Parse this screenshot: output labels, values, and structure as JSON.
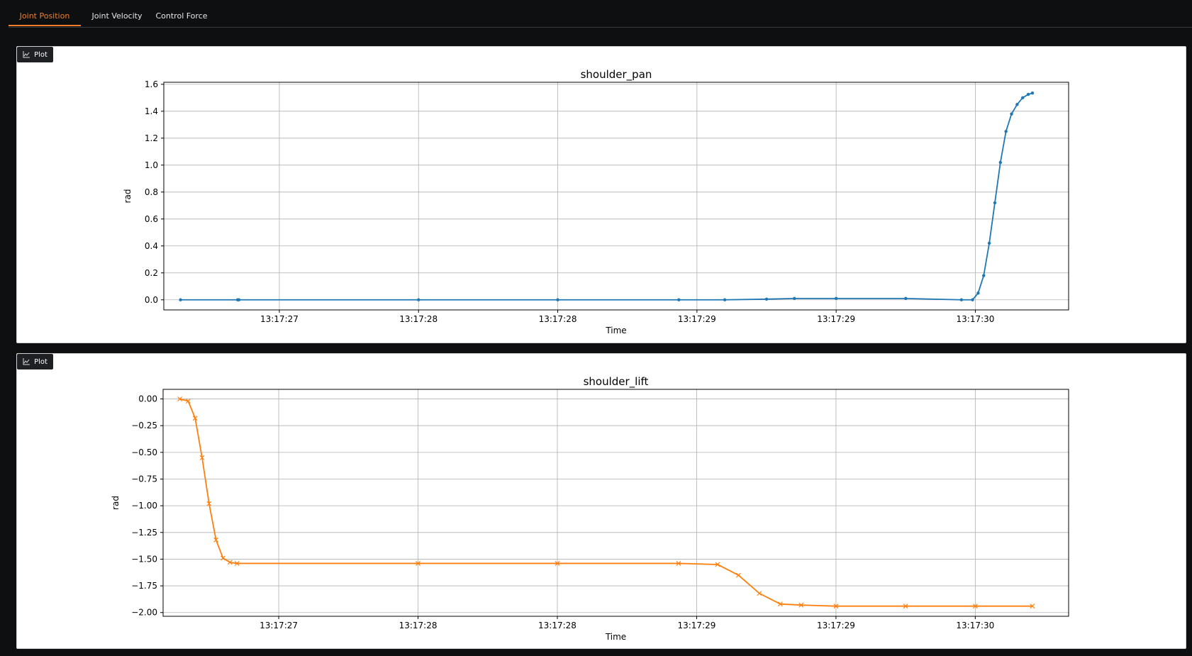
{
  "tabs": [
    {
      "label": "Joint Position",
      "active": true
    },
    {
      "label": "Joint Velocity",
      "active": false
    },
    {
      "label": "Control Force",
      "active": false
    }
  ],
  "panels": [
    {
      "button_label": "Plot",
      "button_icon": "chart-icon"
    },
    {
      "button_label": "Plot",
      "button_icon": "chart-icon"
    }
  ],
  "colors": {
    "accent": "#f27e2c",
    "series_blue": "#1f77b4",
    "series_orange": "#ff7f0e"
  },
  "chart_data": [
    {
      "type": "line",
      "title": "shoulder_pan",
      "xlabel": "Time",
      "ylabel": "rad",
      "marker": "dot",
      "color": "#1f77b4",
      "grid": true,
      "x_ticks": [
        "13:17:27",
        "13:17:28",
        "13:17:28",
        "13:17:29",
        "13:17:29",
        "13:17:30"
      ],
      "x_tick_values": [
        1.0,
        2.0,
        3.0,
        4.0,
        5.0,
        6.0
      ],
      "xlim": [
        0.17,
        6.67
      ],
      "y_ticks": [
        "0.0",
        "0.2",
        "0.4",
        "0.6",
        "0.8",
        "1.0",
        "1.2",
        "1.4",
        "1.6"
      ],
      "y_tick_values": [
        0.0,
        0.2,
        0.4,
        0.6,
        0.8,
        1.0,
        1.2,
        1.4,
        1.6
      ],
      "ylim": [
        -0.075,
        1.615
      ],
      "x": [
        0.29,
        0.7,
        0.71,
        2.0,
        3.0,
        3.87,
        4.2,
        4.5,
        4.7,
        5.0,
        5.5,
        5.9,
        5.98,
        6.02,
        6.06,
        6.1,
        6.14,
        6.18,
        6.22,
        6.26,
        6.3,
        6.34,
        6.38,
        6.41
      ],
      "y": [
        0.0,
        0.0,
        0.0,
        0.0,
        0.0,
        0.0,
        0.0,
        0.005,
        0.01,
        0.01,
        0.01,
        0.0,
        0.0,
        0.05,
        0.18,
        0.42,
        0.72,
        1.02,
        1.25,
        1.38,
        1.45,
        1.5,
        1.525,
        1.535
      ]
    },
    {
      "type": "line",
      "title": "shoulder_lift",
      "xlabel": "Time",
      "ylabel": "rad",
      "marker": "x",
      "color": "#ff7f0e",
      "grid": true,
      "x_ticks": [
        "13:17:27",
        "13:17:28",
        "13:17:28",
        "13:17:29",
        "13:17:29",
        "13:17:30"
      ],
      "x_tick_values": [
        1.0,
        2.0,
        3.0,
        4.0,
        5.0,
        6.0
      ],
      "xlim": [
        0.17,
        6.67
      ],
      "y_ticks": [
        "0.00",
        "−0.25",
        "−0.50",
        "−0.75",
        "−1.00",
        "−1.25",
        "−1.50",
        "−1.75",
        "−2.00"
      ],
      "y_tick_values": [
        0.0,
        -0.25,
        -0.5,
        -0.75,
        -1.0,
        -1.25,
        -1.5,
        -1.75,
        -2.0
      ],
      "ylim": [
        -2.035,
        0.09
      ],
      "x": [
        0.29,
        0.35,
        0.4,
        0.45,
        0.5,
        0.55,
        0.6,
        0.65,
        0.7,
        2.0,
        3.0,
        3.87,
        4.15,
        4.3,
        4.45,
        4.6,
        4.75,
        5.0,
        5.5,
        6.0,
        6.41
      ],
      "y": [
        0.0,
        -0.02,
        -0.18,
        -0.55,
        -0.98,
        -1.32,
        -1.49,
        -1.53,
        -1.54,
        -1.54,
        -1.54,
        -1.54,
        -1.55,
        -1.65,
        -1.82,
        -1.92,
        -1.93,
        -1.94,
        -1.94,
        -1.94,
        -1.94
      ]
    }
  ]
}
